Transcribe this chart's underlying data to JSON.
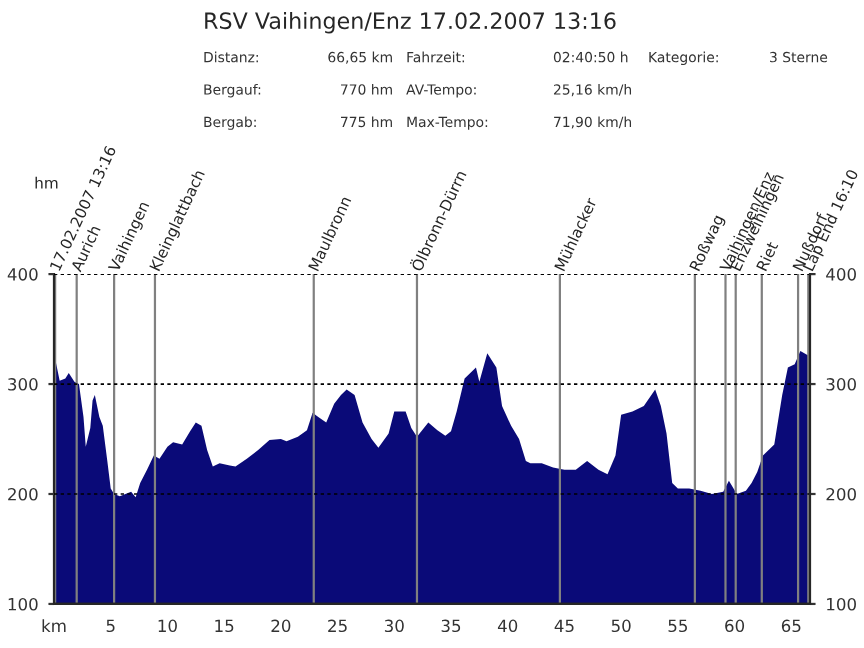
{
  "chart_data": {
    "type": "area",
    "title": "RSV Vaihingen/Enz 17.02.2007 13:16",
    "annotations": [
      "hm",
      "Distanz:",
      "66,65 km",
      "Fahrzeit:",
      "02:40:50 h",
      "Kategorie:",
      "3 Sterne",
      "Bergauf:",
      "770 hm",
      "AV-Tempo:",
      "25,16 km/h",
      "Bergab:",
      "775 hm",
      "Max-Tempo:",
      "71,90 km/h",
      {
        "text": "17.02.2007 13:16",
        "x": 0.1,
        "y": 400
      },
      {
        "text": "Lap End 16:10",
        "x": 66.5,
        "y": 400
      }
    ],
    "x": [
      0,
      0.5,
      1,
      1.3,
      1.8,
      2.2,
      2.6,
      2.8,
      3.2,
      3.4,
      3.6,
      4,
      4.3,
      4.7,
      5,
      5.3,
      5.8,
      6.3,
      6.8,
      7.2,
      7.6,
      8.2,
      8.8,
      9.3,
      10,
      10.5,
      11.3,
      12,
      12.5,
      13,
      13.5,
      14,
      14.6,
      15.5,
      16,
      17,
      18,
      19,
      20,
      20.5,
      21.5,
      22.3,
      22.8,
      23.3,
      24,
      24.7,
      25.3,
      25.8,
      26.5,
      27.2,
      28,
      28.6,
      29.5,
      30,
      31,
      31.5,
      32,
      33,
      33.8,
      34.5,
      35,
      35.5,
      36.2,
      36.7,
      37.2,
      37.5,
      38.2,
      39,
      39.5,
      40.3,
      41,
      41.6,
      42,
      43,
      44,
      45,
      46,
      47,
      48,
      48.8,
      49.5,
      50,
      51,
      52,
      53,
      53.5,
      54,
      54.5,
      55,
      56,
      57,
      58,
      59,
      59.5,
      60.2,
      61,
      61.5,
      62,
      62.5,
      63.5,
      64.2,
      64.7,
      65.3,
      65.8,
      66.65
    ],
    "series": [
      {
        "color": "#0a0a78",
        "values": [
          328,
          303,
          305,
          310,
          302,
          300,
          270,
          243,
          260,
          285,
          290,
          270,
          262,
          230,
          205,
          200,
          198,
          200,
          202,
          197,
          210,
          222,
          235,
          232,
          243,
          247,
          245,
          257,
          265,
          262,
          240,
          225,
          228,
          226,
          225,
          232,
          240,
          249,
          250,
          248,
          252,
          258,
          274,
          270,
          265,
          282,
          290,
          295,
          290,
          265,
          250,
          242,
          255,
          275,
          275,
          260,
          252,
          265,
          258,
          253,
          257,
          275,
          305,
          310,
          315,
          302,
          328,
          315,
          280,
          262,
          250,
          230,
          228,
          228,
          224,
          222,
          222,
          230,
          222,
          218,
          235,
          272,
          275,
          280,
          295,
          280,
          255,
          210,
          205,
          205,
          203,
          200,
          202,
          212,
          200,
          203,
          210,
          220,
          235,
          245,
          290,
          315,
          318,
          330,
          325
        ]
      }
    ],
    "xlim": [
      0,
      66.65
    ],
    "xticks": [
      {
        "value": 0,
        "label": "km"
      },
      5,
      10,
      15,
      20,
      25,
      30,
      35,
      40,
      45,
      50,
      55,
      60,
      65
    ],
    "ylim": [
      100,
      400
    ],
    "yticks": [
      100,
      200,
      300,
      400
    ],
    "y2lim": [
      100,
      400
    ],
    "y2ticks": [
      100,
      200,
      300,
      400
    ],
    "grid": "y",
    "ref_lines": [
      {
        "axis": "x",
        "value": 0.1,
        "color": "#808080"
      },
      {
        "axis": "x",
        "value": 2.0,
        "label": "Aurich",
        "color": "#808080"
      },
      {
        "axis": "x",
        "value": 5.3,
        "label": "Vaihingen",
        "color": "#808080"
      },
      {
        "axis": "x",
        "value": 8.9,
        "label": "Kleinglattbach",
        "color": "#808080"
      },
      {
        "axis": "x",
        "value": 22.9,
        "label": "Maulbronn",
        "color": "#808080"
      },
      {
        "axis": "x",
        "value": 32.0,
        "label": "Ölbronn-Dürrn",
        "color": "#808080"
      },
      {
        "axis": "x",
        "value": 44.6,
        "label": "Mühlacker",
        "color": "#808080"
      },
      {
        "axis": "x",
        "value": 56.5,
        "label": "Roßwag",
        "color": "#808080"
      },
      {
        "axis": "x",
        "value": 59.2,
        "label": "Vaihingen/Enz",
        "color": "#808080"
      },
      {
        "axis": "x",
        "value": 60.1,
        "label": "Enzweihingen",
        "color": "#808080"
      },
      {
        "axis": "x",
        "value": 62.4,
        "label": "Riet",
        "color": "#808080"
      },
      {
        "axis": "x",
        "value": 65.6,
        "label": "Nußdorf",
        "color": "#808080"
      },
      {
        "axis": "x",
        "value": 66.5,
        "color": "#808080"
      }
    ]
  }
}
